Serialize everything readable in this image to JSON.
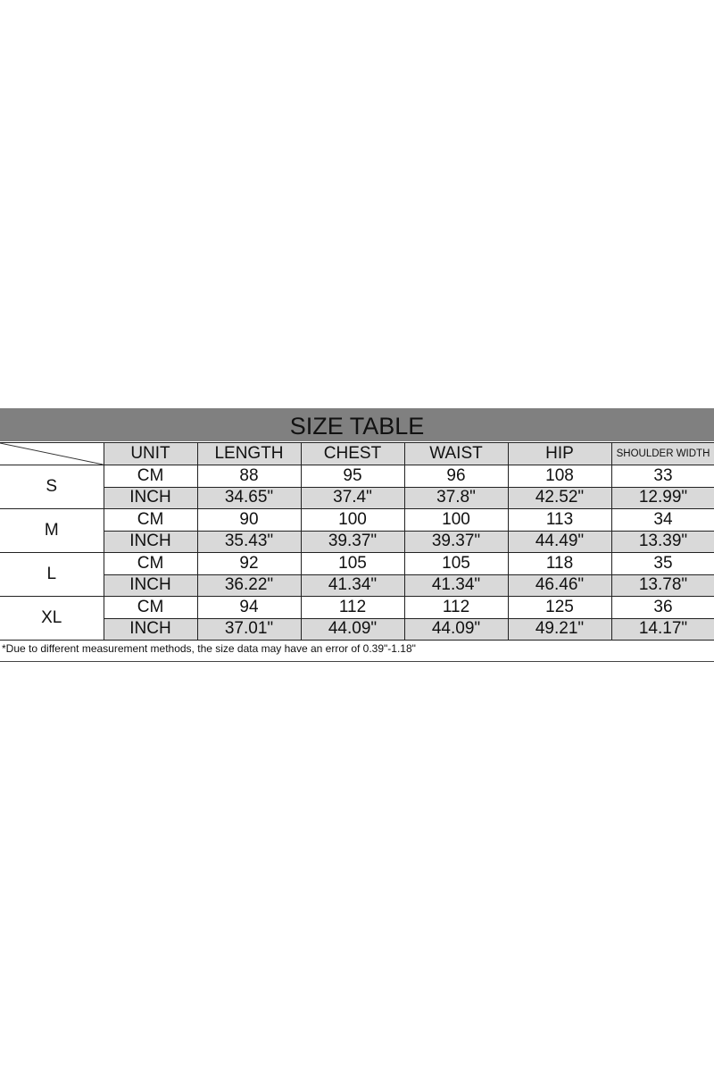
{
  "title": "SIZE TABLE",
  "columns": [
    "UNIT",
    "LENGTH",
    "CHEST",
    "WAIST",
    "HIP",
    "SHOULDER WIDTH"
  ],
  "sizes": [
    {
      "size": "S",
      "cm": [
        "CM",
        "88",
        "95",
        "96",
        "108",
        "33"
      ],
      "inch": [
        "INCH",
        "34.65\"",
        "37.4\"",
        "37.8\"",
        "42.52\"",
        "12.99\""
      ]
    },
    {
      "size": "M",
      "cm": [
        "CM",
        "90",
        "100",
        "100",
        "113",
        "34"
      ],
      "inch": [
        "INCH",
        "35.43\"",
        "39.37\"",
        "39.37\"",
        "44.49\"",
        "13.39\""
      ]
    },
    {
      "size": "L",
      "cm": [
        "CM",
        "92",
        "105",
        "105",
        "118",
        "35"
      ],
      "inch": [
        "INCH",
        "36.22\"",
        "41.34\"",
        "41.34\"",
        "46.46\"",
        "13.78\""
      ]
    },
    {
      "size": "XL",
      "cm": [
        "CM",
        "94",
        "112",
        "112",
        "125",
        "36"
      ],
      "inch": [
        "INCH",
        "37.01\"",
        "44.09\"",
        "44.09\"",
        "49.21\"",
        "14.17\""
      ]
    }
  ],
  "note": "*Due to different measurement methods, the size data may have an error of 0.39\"-1.18\"",
  "colors": {
    "title_bg": "#808080",
    "cell_gray": "#d9d9d9"
  }
}
